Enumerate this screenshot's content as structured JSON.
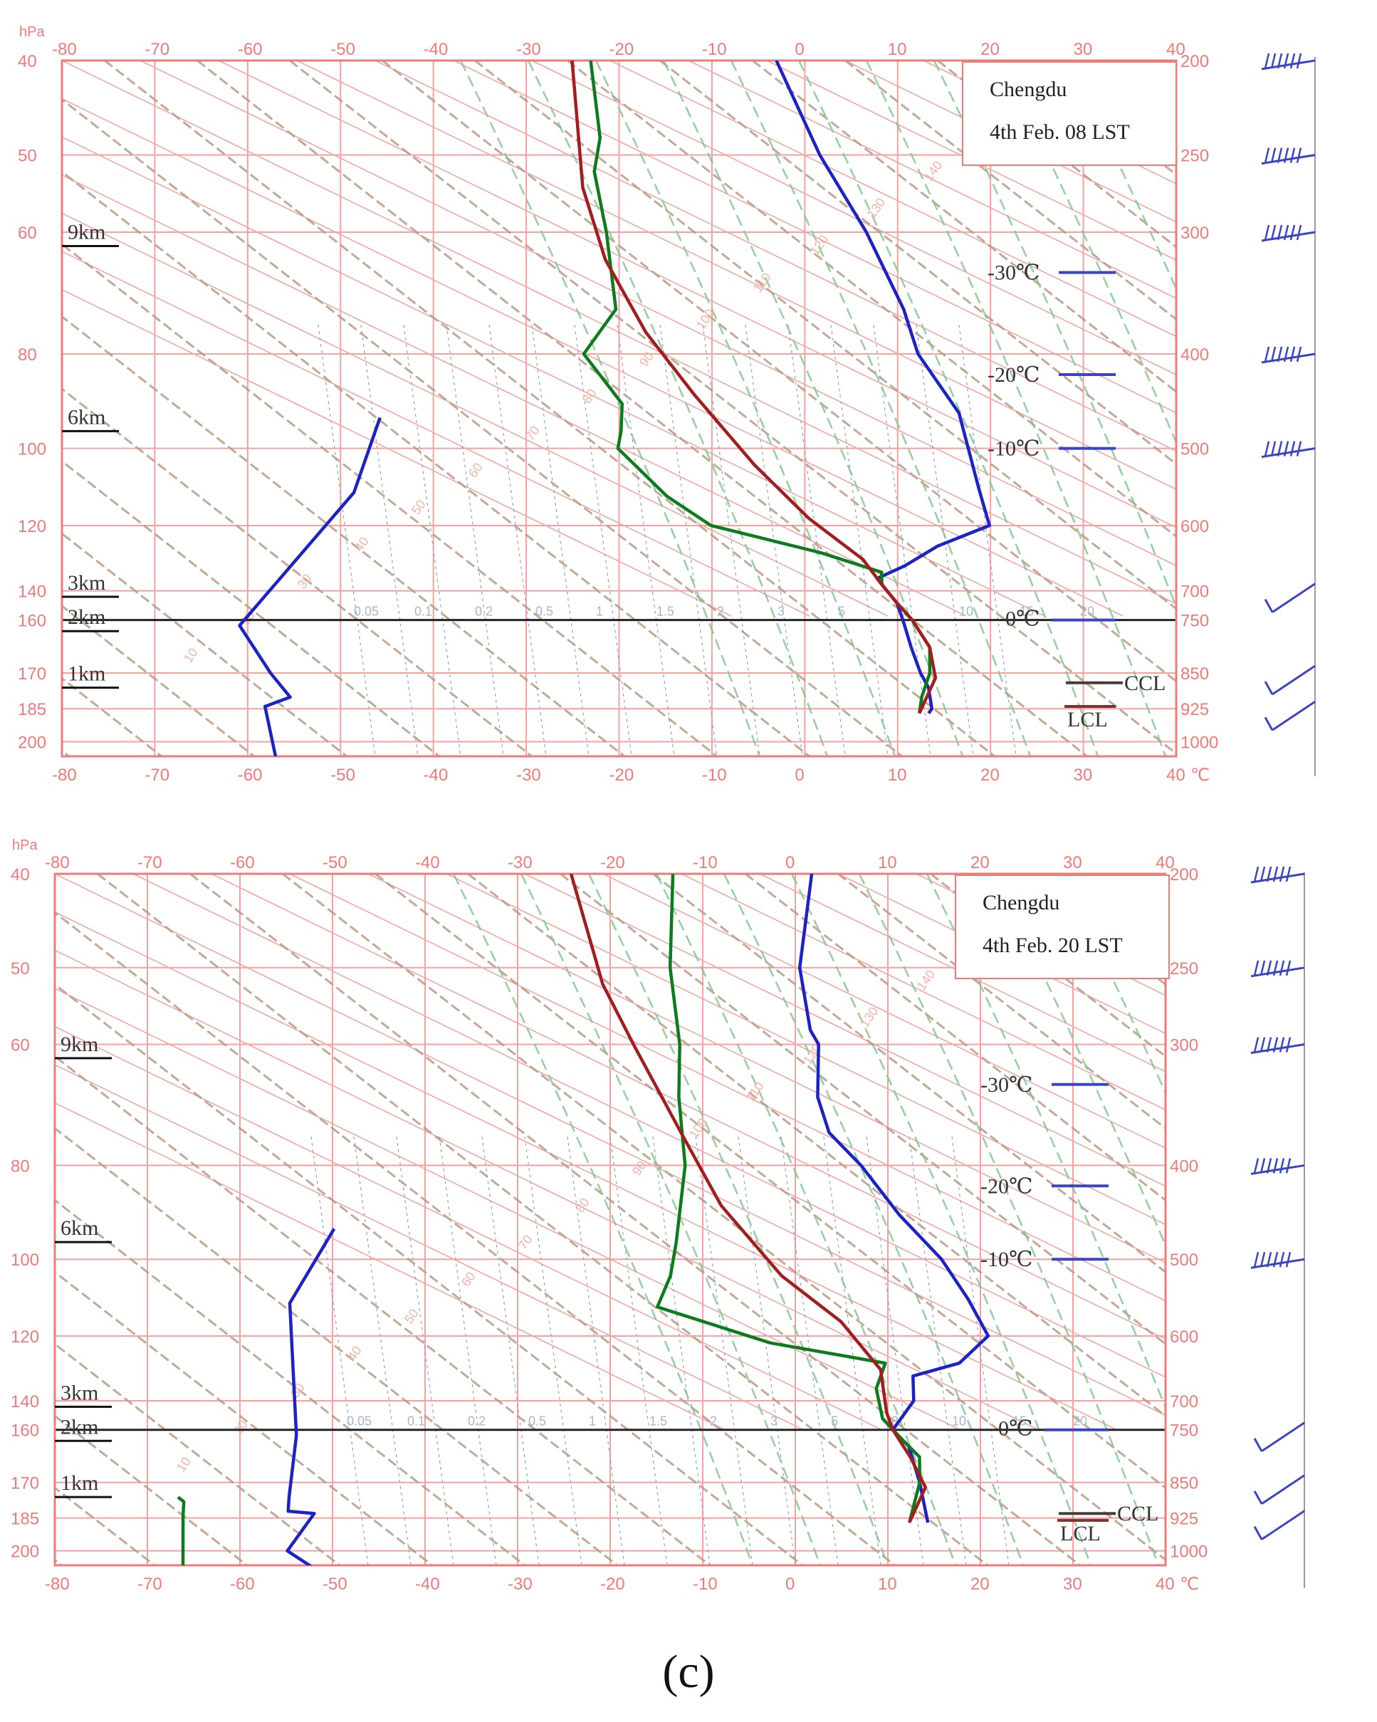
{
  "caption": "(c)",
  "axis": {
    "temp_ticks": [
      "-80",
      "-70",
      "-60",
      "-50",
      "-40",
      "-30",
      "-20",
      "-10",
      "0",
      "10",
      "20",
      "30",
      "40"
    ],
    "hpa_label": "hPa",
    "left_ticks": [
      "40",
      "50",
      "60",
      "80",
      "100",
      "120",
      "140",
      "160",
      "170",
      "185",
      "200"
    ],
    "right_ticks": [
      "200",
      "250",
      "300",
      "400",
      "500",
      "600",
      "700",
      "750",
      "850",
      "925",
      "1000"
    ],
    "unit": "℃"
  },
  "legend": {
    "t30": "-30℃",
    "t20": "-20℃",
    "t10": "-10℃",
    "t0": "0℃",
    "ccl": "CCL",
    "lcl": "LCL"
  },
  "mixing_labels": [
    "0.05",
    "0.1",
    "0.2",
    "0.5",
    "1",
    "1.5",
    "2",
    "3",
    "5",
    "8",
    "10",
    "15",
    "20"
  ],
  "theta_labels": [
    "10",
    "20",
    "30",
    "40",
    "50",
    "60",
    "70",
    "80",
    "90",
    "100",
    "110",
    "120",
    "130",
    "140",
    "150",
    "160"
  ],
  "chart_data": [
    {
      "type": "line",
      "title": "Chengdu",
      "subtitle": "4th Feb. 08 LST",
      "xlabel": "℃",
      "ylabel": "hPa",
      "xlim": [
        -80,
        40
      ],
      "levels_hpa": [
        200,
        250,
        300,
        400,
        500,
        600,
        700,
        750,
        850,
        925,
        1000
      ],
      "height_labels": [
        "9km",
        "6km",
        "3km",
        "2km",
        "1km"
      ],
      "height_levels_hpa": [
        310,
        480,
        710,
        770,
        880
      ],
      "freezing_level_hpa": 750,
      "series": [
        {
          "name": "Temperature",
          "color": "#1c22c4",
          "points": [
            [
              -57,
              200
            ],
            [
              -45,
              250
            ],
            [
              -34,
              300
            ],
            [
              -24,
              360
            ],
            [
              -19,
              400
            ],
            [
              -10,
              460
            ],
            [
              -2,
              550
            ],
            [
              2,
              600
            ],
            [
              -2,
              630
            ],
            [
              -4,
              660
            ],
            [
              -6,
              680
            ],
            [
              -2,
              720
            ],
            [
              0,
              750
            ],
            [
              3,
              800
            ],
            [
              6,
              850
            ],
            [
              8,
              880
            ],
            [
              10,
              925
            ],
            [
              10,
              935
            ]
          ]
        },
        {
          "name": "Dew point",
          "color": "#0b7c1c",
          "points": [
            [
              -77,
              200
            ],
            [
              -70,
              240
            ],
            [
              -68,
              260
            ],
            [
              -62,
              300
            ],
            [
              -55,
              360
            ],
            [
              -55,
              390
            ],
            [
              -55,
              400
            ],
            [
              -47,
              450
            ],
            [
              -45,
              480
            ],
            [
              -44,
              500
            ],
            [
              -35,
              560
            ],
            [
              -28,
              600
            ],
            [
              -14,
              640
            ],
            [
              -6,
              670
            ],
            [
              -5,
              690
            ],
            [
              -2,
              720
            ],
            [
              1,
              750
            ],
            [
              5,
              800
            ],
            [
              7,
              850
            ],
            [
              8,
              900
            ],
            [
              9,
              935
            ]
          ]
        },
        {
          "name": "Parcel path",
          "color": "#a41d1d",
          "points": [
            [
              -79,
              200
            ],
            [
              -68,
              270
            ],
            [
              -60,
              320
            ],
            [
              -50,
              380
            ],
            [
              -40,
              440
            ],
            [
              -28,
              520
            ],
            [
              -18,
              590
            ],
            [
              -9,
              650
            ],
            [
              -5,
              690
            ],
            [
              -2,
              720
            ],
            [
              1,
              750
            ],
            [
              5,
              800
            ],
            [
              8,
              860
            ],
            [
              9,
              935
            ]
          ]
        },
        {
          "name": "Stratosphere segment",
          "color": "#1c22c4",
          "points": [
            [
              -72,
              465
            ],
            [
              -69,
              555
            ],
            [
              -71,
              760
            ],
            [
              -64,
              850
            ],
            [
              -60,
              900
            ],
            [
              -62,
              920
            ],
            [
              -57,
              1035
            ]
          ]
        }
      ],
      "wind_levels_hpa": [
        200,
        250,
        300,
        400,
        500,
        700,
        850,
        925
      ]
    },
    {
      "type": "line",
      "title": "Chengdu",
      "subtitle": "4th Feb. 20 LST",
      "xlabel": "℃",
      "ylabel": "hPa",
      "xlim": [
        -80,
        40
      ],
      "levels_hpa": [
        200,
        250,
        300,
        400,
        500,
        600,
        700,
        750,
        850,
        925,
        1000
      ],
      "height_labels": [
        "9km",
        "6km",
        "3km",
        "2km",
        "1km"
      ],
      "height_levels_hpa": [
        310,
        480,
        710,
        770,
        880
      ],
      "freezing_level_hpa": 750,
      "series": [
        {
          "name": "Temperature",
          "color": "#1c22c4",
          "points": [
            [
              -52,
              200
            ],
            [
              -46,
              250
            ],
            [
              -40,
              290
            ],
            [
              -38,
              300
            ],
            [
              -34,
              340
            ],
            [
              -30,
              370
            ],
            [
              -24,
              400
            ],
            [
              -16,
              450
            ],
            [
              -8,
              500
            ],
            [
              -2,
              550
            ],
            [
              3,
              600
            ],
            [
              2,
              640
            ],
            [
              -2,
              660
            ],
            [
              0,
              700
            ],
            [
              0,
              750
            ],
            [
              3,
              780
            ],
            [
              7,
              850
            ],
            [
              11,
              935
            ]
          ]
        },
        {
          "name": "Dew point",
          "color": "#0b7c1c",
          "points": [
            [
              -67,
              200
            ],
            [
              -60,
              250
            ],
            [
              -53,
              300
            ],
            [
              -49,
              340
            ],
            [
              -43,
              400
            ],
            [
              -38,
              480
            ],
            [
              -36,
              520
            ],
            [
              -35,
              560
            ],
            [
              -20,
              610
            ],
            [
              -6,
              640
            ],
            [
              -5,
              680
            ],
            [
              -2,
              730
            ],
            [
              1,
              760
            ],
            [
              5,
              800
            ],
            [
              7,
              850
            ],
            [
              9,
              935
            ]
          ]
        },
        {
          "name": "Parcel path",
          "color": "#a41d1d",
          "points": [
            [
              -78,
              200
            ],
            [
              -66,
              260
            ],
            [
              -58,
              300
            ],
            [
              -46,
              370
            ],
            [
              -36,
              440
            ],
            [
              -24,
              520
            ],
            [
              -14,
              580
            ],
            [
              -6,
              650
            ],
            [
              -2,
              720
            ],
            [
              0,
              750
            ],
            [
              4,
              800
            ],
            [
              8,
              860
            ],
            [
              9,
              935
            ]
          ]
        },
        {
          "name": "Stratosphere segment",
          "color": "#1c22c4",
          "points": [
            [
              -76,
              465
            ],
            [
              -75,
              555
            ],
            [
              -64,
              760
            ],
            [
              -60,
              880
            ],
            [
              -59,
              910
            ],
            [
              -56,
              915
            ],
            [
              -56,
              1000
            ],
            [
              -52,
              1040
            ]
          ]
        },
        {
          "name": "Upper dew point",
          "color": "#0b7c1c",
          "points": [
            [
              -72,
              880
            ],
            [
              -71,
              890
            ],
            [
              -70,
              920
            ],
            [
              -66,
              1040
            ]
          ]
        }
      ],
      "wind_levels_hpa": [
        200,
        250,
        300,
        400,
        500,
        750,
        850,
        925
      ]
    }
  ]
}
